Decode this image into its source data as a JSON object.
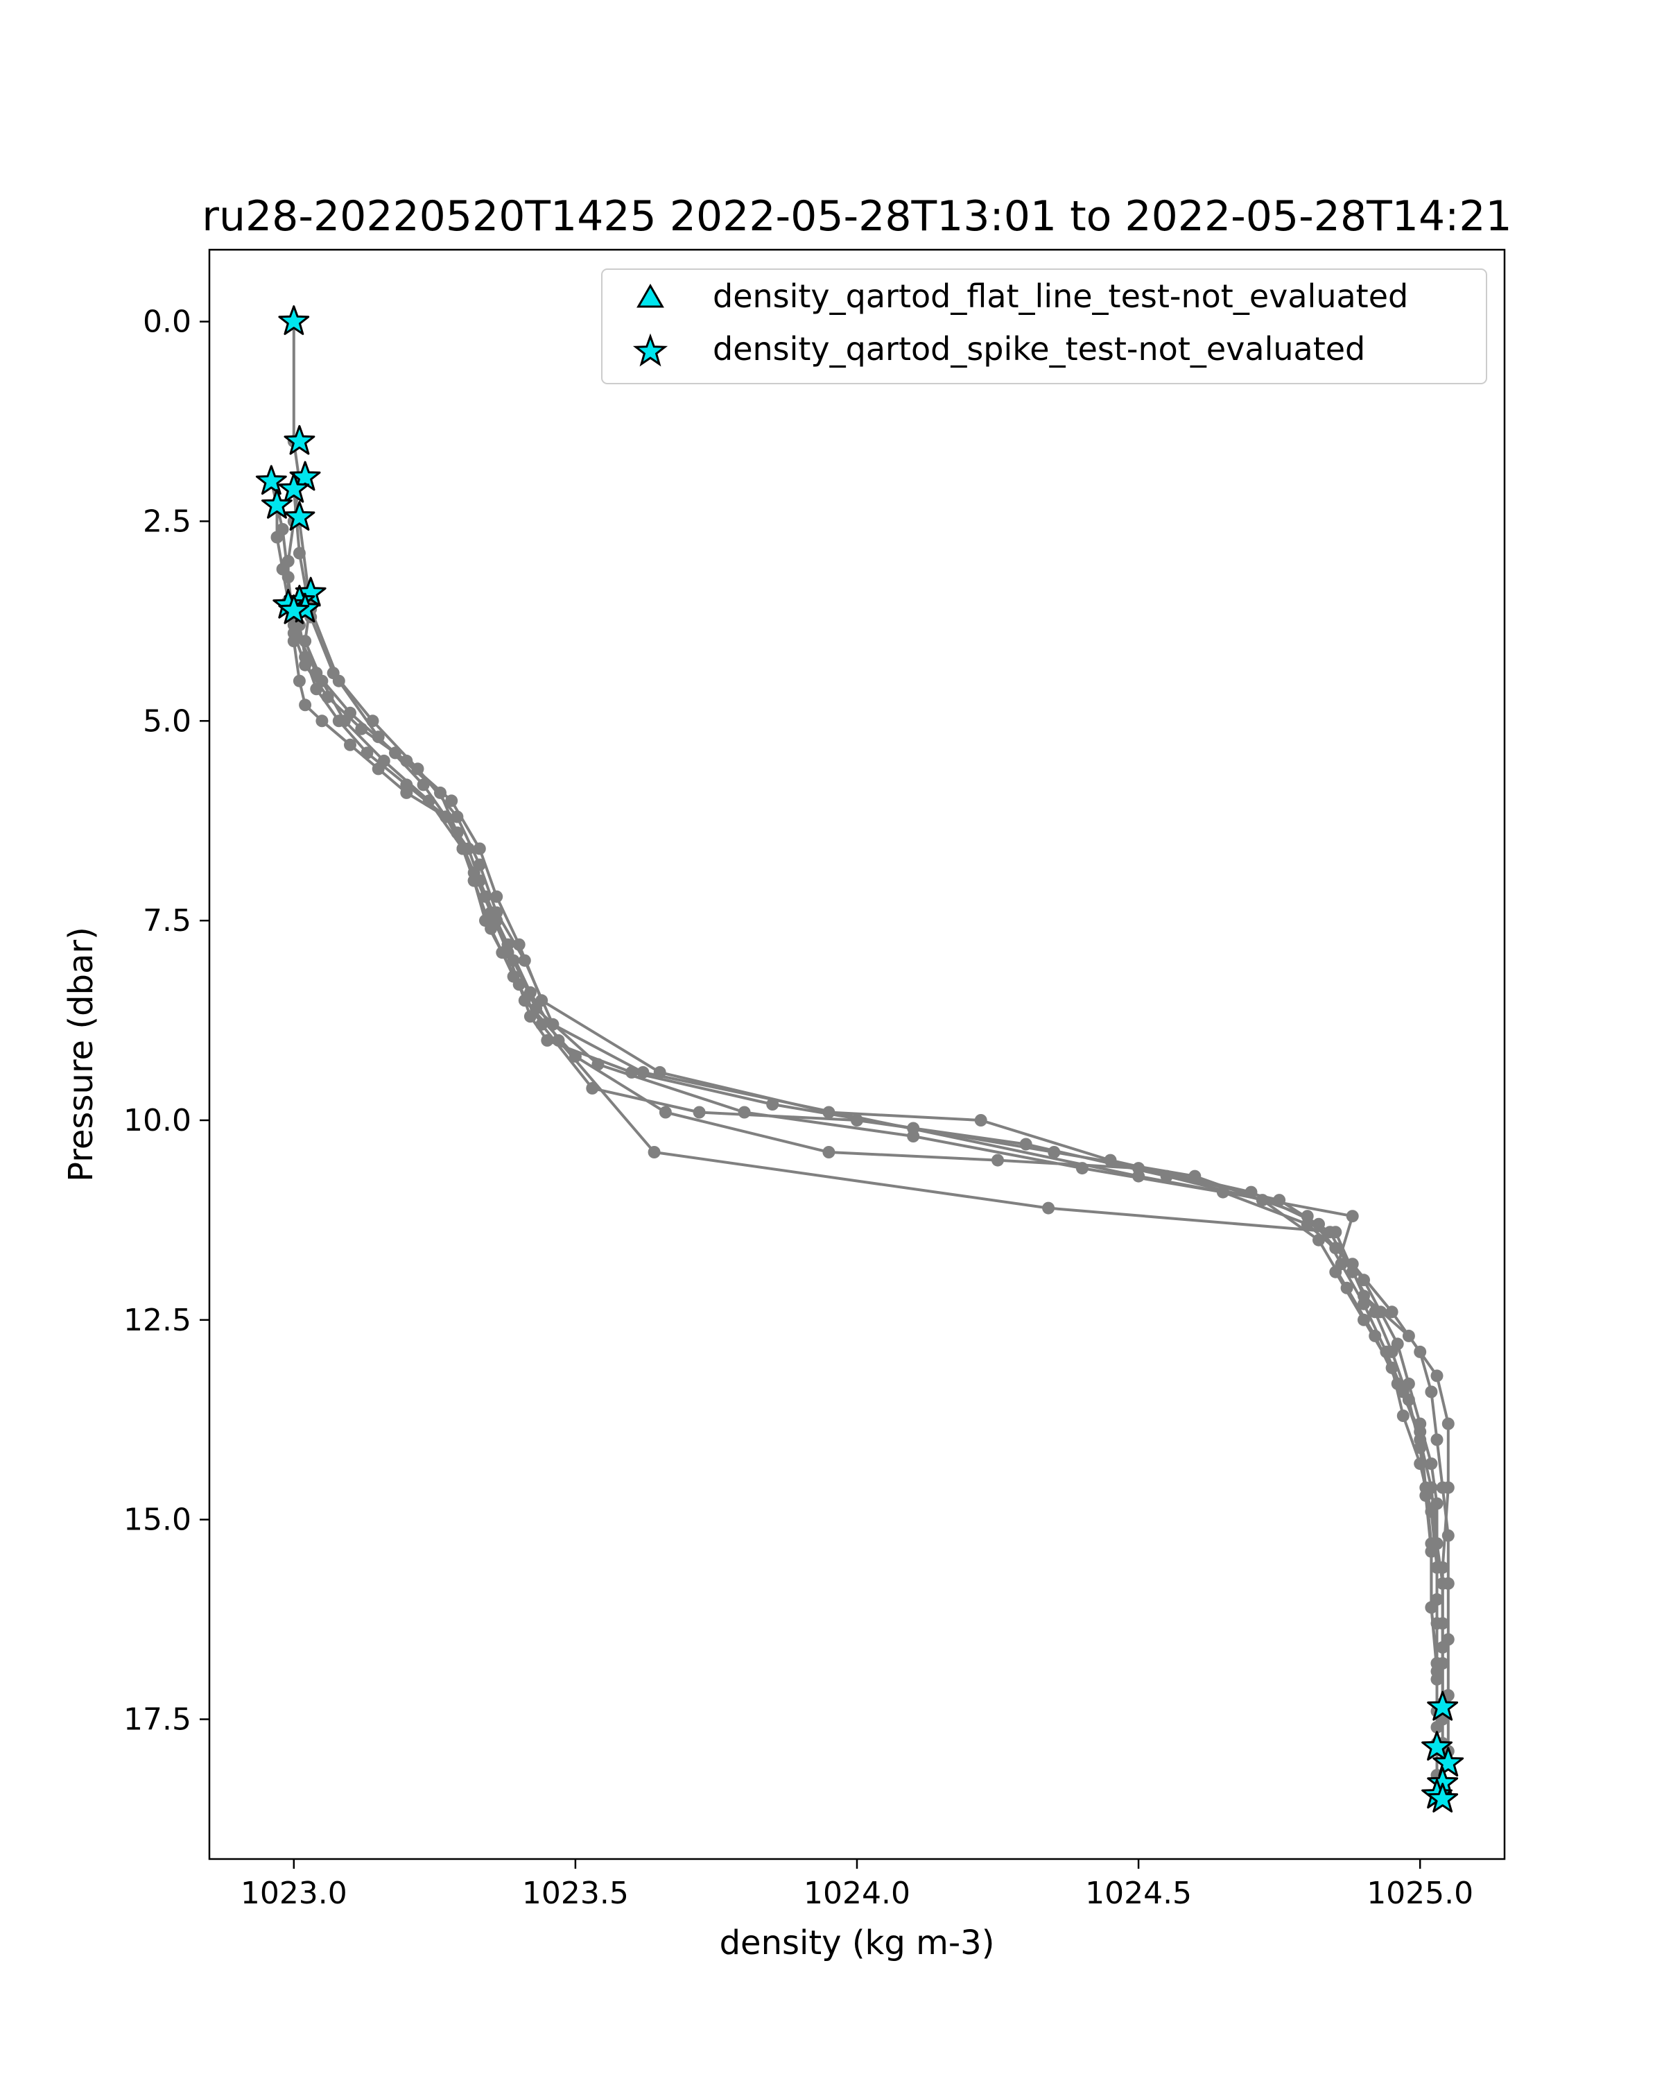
{
  "chart_data": {
    "type": "scatter",
    "title": "ru28-20220520T1425 2022-05-28T13:01 to 2022-05-28T14:21",
    "xlabel": "density (kg m-3)",
    "ylabel": "Pressure (dbar)",
    "xlim": [
      1022.85,
      1025.15
    ],
    "ylim": [
      19.25,
      -0.9
    ],
    "y_inverted": true,
    "grid": false,
    "legend_position": "top-right",
    "x_ticks": [
      "1023.0",
      "1023.5",
      "1024.0",
      "1024.5",
      "1025.0"
    ],
    "y_ticks": [
      "0.0",
      "2.5",
      "5.0",
      "7.5",
      "10.0",
      "12.5",
      "15.0",
      "17.5"
    ],
    "colors": {
      "line": "#808080",
      "flag_fill": "#00e5ee",
      "flag_edge": "#000000"
    },
    "profiles": [
      {
        "x": [
          1023.0,
          1023.0,
          1023.01,
          1023.0,
          1022.99,
          1022.99,
          1023.0,
          1023.01,
          1023.02,
          1023.05,
          1023.1,
          1023.15,
          1023.2,
          1023.27,
          1023.3,
          1023.32,
          1023.34,
          1023.37,
          1023.4,
          1023.42,
          1023.45,
          1023.6,
          1023.85,
          1024.1,
          1024.35,
          1024.6,
          1024.8,
          1024.85,
          1024.9,
          1024.93,
          1024.96,
          1024.98,
          1025.0,
          1025.02,
          1025.03,
          1025.03,
          1025.04,
          1025.04,
          1025.04,
          1025.04,
          1025.04,
          1025.04
        ],
        "y": [
          0.0,
          1.5,
          2.0,
          2.5,
          3.0,
          3.5,
          4.0,
          4.5,
          4.8,
          5.0,
          5.3,
          5.6,
          5.9,
          6.2,
          6.6,
          7.0,
          7.5,
          7.9,
          8.3,
          8.7,
          9.0,
          9.4,
          9.8,
          10.1,
          10.4,
          10.7,
          11.2,
          11.6,
          12.0,
          12.4,
          12.8,
          13.3,
          13.8,
          14.3,
          14.8,
          15.3,
          15.8,
          16.3,
          16.8,
          17.3,
          17.8,
          18.3
        ]
      },
      {
        "x": [
          1022.97,
          1022.97,
          1022.98,
          1022.99,
          1023.0,
          1023.02,
          1023.06,
          1023.12,
          1023.2,
          1023.28,
          1023.33,
          1023.36,
          1023.4,
          1023.44,
          1023.65,
          1023.95,
          1024.22,
          1024.45,
          1024.7,
          1024.82,
          1024.86,
          1024.9,
          1024.94,
          1024.97,
          1025.0,
          1025.02,
          1025.03,
          1025.03,
          1025.03,
          1025.03,
          1025.03
        ],
        "y": [
          2.3,
          2.7,
          3.1,
          3.5,
          3.9,
          4.3,
          4.7,
          5.1,
          5.5,
          6.0,
          6.6,
          7.2,
          7.8,
          8.5,
          9.4,
          9.9,
          10.0,
          10.5,
          10.9,
          11.3,
          11.8,
          12.3,
          12.9,
          13.4,
          14.0,
          14.6,
          15.3,
          16.0,
          16.8,
          17.4,
          17.8
        ]
      },
      {
        "x": [
          1023.02,
          1023.01,
          1023.02,
          1023.04,
          1023.08,
          1023.13,
          1023.2,
          1023.27,
          1023.31,
          1023.33,
          1023.36,
          1023.39,
          1023.43,
          1023.54,
          1023.8,
          1024.1,
          1024.4,
          1024.65,
          1024.8,
          1024.88,
          1024.95,
          1025.0,
          1025.02,
          1025.03,
          1025.04,
          1025.05,
          1025.05,
          1025.05,
          1025.05,
          1025.05
        ],
        "y": [
          3.4,
          3.8,
          4.2,
          4.6,
          5.0,
          5.4,
          5.8,
          6.2,
          6.6,
          7.0,
          7.5,
          8.0,
          8.6,
          9.3,
          9.9,
          10.2,
          10.6,
          10.9,
          11.3,
          11.8,
          12.4,
          12.9,
          13.4,
          14.0,
          14.6,
          15.2,
          15.8,
          16.5,
          17.2,
          17.9
        ]
      },
      {
        "x": [
          1022.96,
          1022.98,
          1022.99,
          1023.0,
          1023.04,
          1023.1,
          1023.18,
          1023.26,
          1023.29,
          1023.32,
          1023.35,
          1023.38,
          1023.41,
          1023.5,
          1023.66,
          1023.95,
          1024.25,
          1024.5,
          1024.75,
          1024.84,
          1024.88,
          1024.92,
          1024.95,
          1024.98,
          1025.0,
          1025.01,
          1025.02,
          1025.02,
          1025.03,
          1025.03
        ],
        "y": [
          2.0,
          2.6,
          3.2,
          3.8,
          4.4,
          4.9,
          5.4,
          5.9,
          6.4,
          6.9,
          7.4,
          7.9,
          8.5,
          9.2,
          9.9,
          10.4,
          10.5,
          10.6,
          11.0,
          11.4,
          11.9,
          12.4,
          12.9,
          13.5,
          14.1,
          14.7,
          15.4,
          16.1,
          16.8,
          17.6
        ]
      },
      {
        "x": [
          1023.03,
          1023.02,
          1023.05,
          1023.09,
          1023.16,
          1023.24,
          1023.3,
          1023.34,
          1023.38,
          1023.42,
          1023.47,
          1023.64,
          1024.34,
          1024.85,
          1024.9,
          1024.98,
          1025.03,
          1025.05,
          1025.05,
          1025.04,
          1025.04,
          1025.04
        ],
        "y": [
          3.5,
          4.0,
          4.5,
          5.0,
          5.5,
          6.0,
          6.6,
          7.2,
          7.8,
          8.4,
          9.0,
          10.4,
          11.1,
          11.4,
          12.2,
          12.7,
          13.2,
          13.8,
          14.6,
          15.6,
          16.6,
          17.5
        ]
      },
      {
        "x": [
          1023.0,
          1023.01,
          1023.03,
          1023.07,
          1023.14,
          1023.22,
          1023.29,
          1023.33,
          1023.36,
          1023.41,
          1023.46,
          1023.62,
          1024.5,
          1024.88,
          1024.85,
          1024.9,
          1024.95,
          1024.97,
          1025.0,
          1025.02,
          1025.03,
          1025.03,
          1025.03,
          1025.03
        ],
        "y": [
          2.1,
          2.9,
          3.7,
          4.4,
          5.0,
          5.6,
          6.2,
          6.8,
          7.4,
          8.0,
          8.8,
          9.4,
          10.7,
          11.2,
          11.9,
          12.5,
          13.1,
          13.7,
          14.3,
          14.9,
          15.6,
          16.3,
          17.0,
          18.2
        ]
      },
      {
        "x": [
          1023.01,
          1023.03,
          1023.08,
          1023.15,
          1023.23,
          1023.29,
          1023.32,
          1023.35,
          1023.39,
          1023.44,
          1023.53,
          1023.72,
          1024.0,
          1024.3,
          1024.55,
          1024.72,
          1024.82,
          1024.87,
          1024.92,
          1024.96,
          1025.0,
          1025.01,
          1025.02,
          1025.02,
          1025.03,
          1025.03
        ],
        "y": [
          2.5,
          3.6,
          4.5,
          5.2,
          5.8,
          6.4,
          7.0,
          7.6,
          8.2,
          8.8,
          9.6,
          9.9,
          10.0,
          10.3,
          10.7,
          11.0,
          11.5,
          12.1,
          12.7,
          13.3,
          13.9,
          14.6,
          15.3,
          16.1,
          16.9,
          18.5
        ]
      }
    ],
    "flags": [
      {
        "test": "density_qartod_flat_line_test-not_evaluated",
        "marker": "triangle",
        "x": [],
        "y": []
      },
      {
        "test": "density_qartod_spike_test-not_evaluated",
        "marker": "star",
        "x": [
          1023.0,
          1023.01,
          1023.02,
          1022.96,
          1023.0,
          1022.97,
          1023.01,
          1023.03,
          1023.01,
          1022.99,
          1023.02,
          1023.0,
          1025.04,
          1025.03,
          1025.05,
          1025.04,
          1025.03,
          1025.04
        ],
        "y": [
          0.0,
          1.5,
          1.95,
          2.0,
          2.1,
          2.3,
          2.45,
          3.4,
          3.5,
          3.55,
          3.6,
          3.62,
          17.35,
          17.85,
          18.05,
          18.3,
          18.45,
          18.5
        ]
      }
    ],
    "legend": [
      {
        "label": "density_qartod_flat_line_test-not_evaluated",
        "marker": "triangle"
      },
      {
        "label": "density_qartod_spike_test-not_evaluated",
        "marker": "star"
      }
    ]
  }
}
